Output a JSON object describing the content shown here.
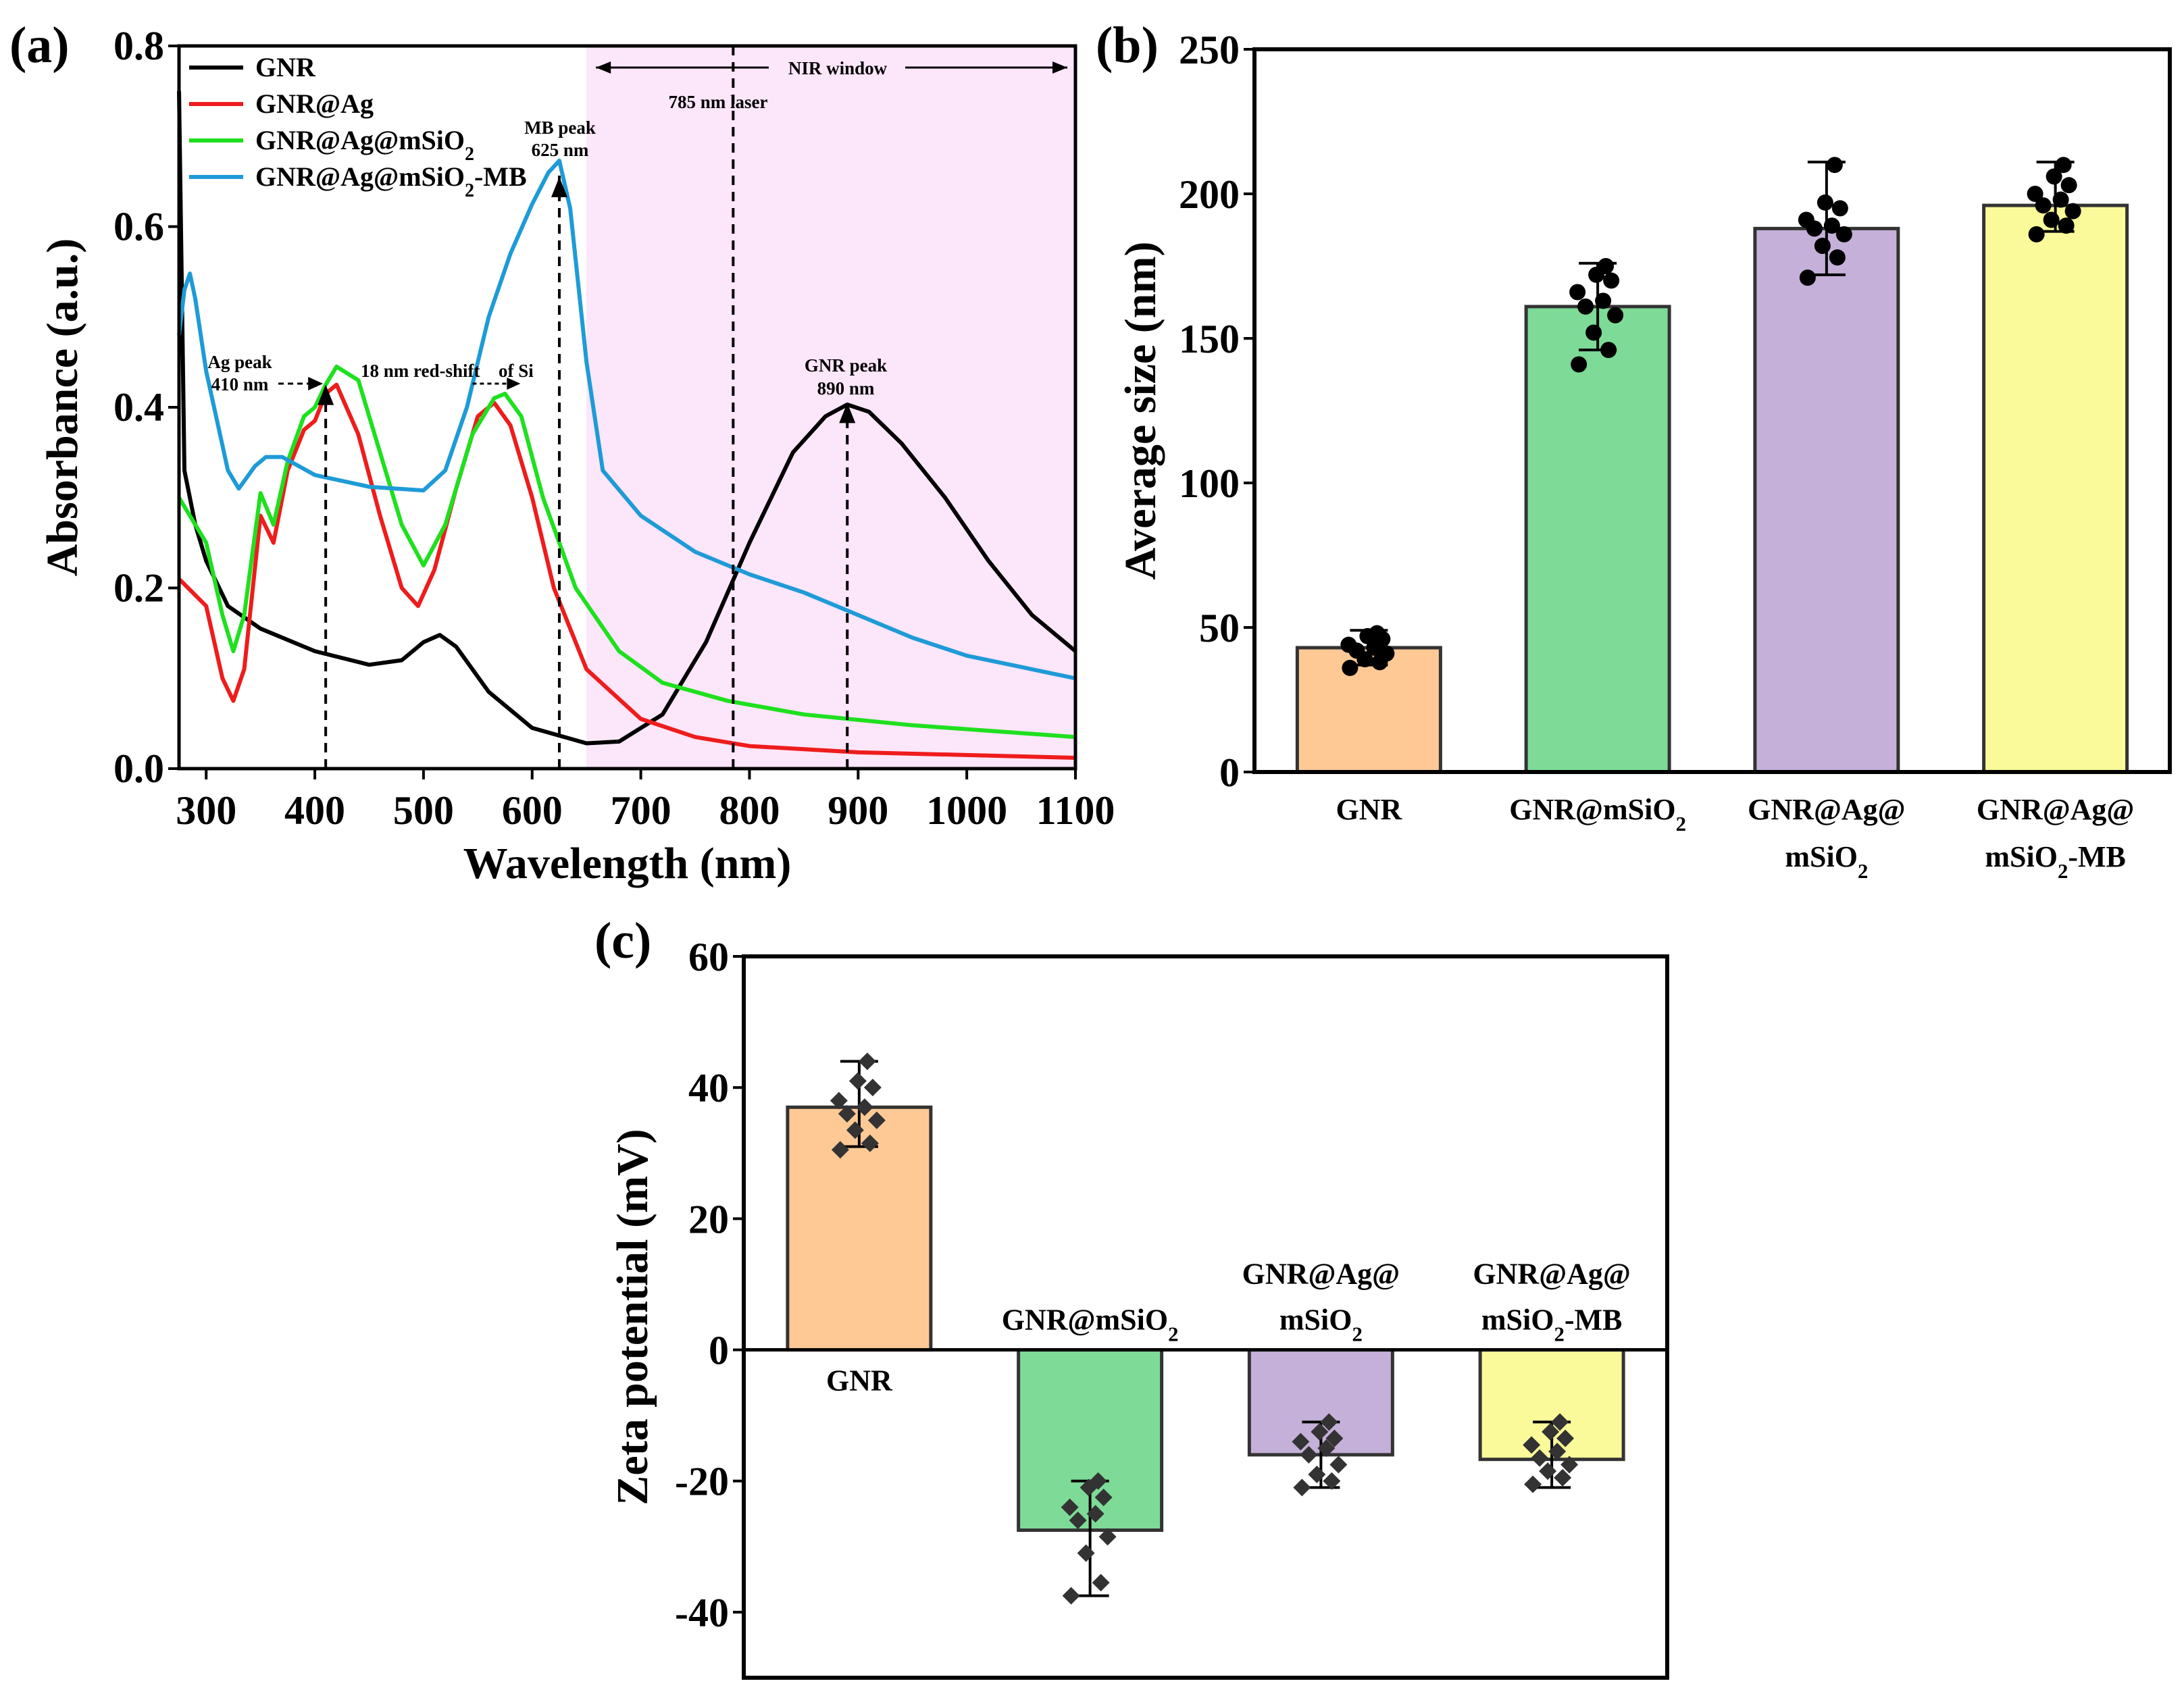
{
  "chart_data": [
    {
      "panel": "(a)",
      "type": "line",
      "xlabel": "Wavelength (nm)",
      "ylabel": "Absorbance (a.u.)",
      "xlim": [
        275,
        1100
      ],
      "ylim": [
        0,
        0.8
      ],
      "xticks": [
        300,
        400,
        500,
        600,
        700,
        800,
        900,
        1000,
        1100
      ],
      "yticks": [
        0.0,
        0.2,
        0.4,
        0.6,
        0.8
      ],
      "legend_position": "top-left",
      "series": [
        {
          "name": "GNR",
          "color": "#000000",
          "x": [
            275,
            280,
            290,
            300,
            320,
            350,
            400,
            450,
            480,
            500,
            515,
            530,
            560,
            600,
            650,
            680,
            720,
            760,
            800,
            840,
            870,
            890,
            910,
            940,
            980,
            1020,
            1060,
            1100
          ],
          "y": [
            0.75,
            0.33,
            0.27,
            0.23,
            0.18,
            0.155,
            0.13,
            0.115,
            0.12,
            0.14,
            0.148,
            0.135,
            0.085,
            0.045,
            0.028,
            0.03,
            0.06,
            0.14,
            0.25,
            0.35,
            0.39,
            0.403,
            0.395,
            0.36,
            0.3,
            0.23,
            0.17,
            0.13
          ]
        },
        {
          "name": "GNR@Ag",
          "color": "#ee1c1c",
          "x": [
            275,
            300,
            315,
            325,
            335,
            350,
            362,
            375,
            390,
            400,
            410,
            420,
            440,
            460,
            480,
            495,
            510,
            530,
            550,
            565,
            580,
            600,
            620,
            650,
            700,
            750,
            800,
            900,
            1000,
            1100
          ],
          "y": [
            0.21,
            0.18,
            0.1,
            0.075,
            0.11,
            0.28,
            0.25,
            0.33,
            0.375,
            0.385,
            0.415,
            0.425,
            0.37,
            0.28,
            0.2,
            0.18,
            0.22,
            0.31,
            0.39,
            0.405,
            0.38,
            0.3,
            0.2,
            0.11,
            0.055,
            0.035,
            0.025,
            0.018,
            0.015,
            0.012
          ]
        },
        {
          "name": "GNR@Ag@mSiO2",
          "color": "#1ee01e",
          "x": [
            275,
            300,
            315,
            325,
            335,
            350,
            362,
            375,
            390,
            400,
            410,
            420,
            440,
            460,
            480,
            500,
            520,
            545,
            565,
            575,
            590,
            610,
            640,
            680,
            720,
            780,
            850,
            950,
            1100
          ],
          "y": [
            0.3,
            0.25,
            0.17,
            0.13,
            0.17,
            0.305,
            0.27,
            0.34,
            0.39,
            0.4,
            0.425,
            0.445,
            0.43,
            0.35,
            0.27,
            0.225,
            0.27,
            0.37,
            0.41,
            0.415,
            0.39,
            0.3,
            0.2,
            0.13,
            0.095,
            0.075,
            0.06,
            0.048,
            0.035
          ]
        },
        {
          "name": "GNR@Ag@mSiO2-MB",
          "color": "#1e9bd7",
          "x": [
            275,
            280,
            285,
            290,
            300,
            320,
            330,
            345,
            355,
            370,
            400,
            450,
            500,
            520,
            540,
            560,
            580,
            600,
            615,
            625,
            635,
            650,
            665,
            700,
            750,
            800,
            850,
            900,
            950,
            1000,
            1100
          ],
          "y": [
            0.48,
            0.53,
            0.548,
            0.52,
            0.44,
            0.33,
            0.31,
            0.335,
            0.345,
            0.345,
            0.325,
            0.312,
            0.308,
            0.33,
            0.4,
            0.5,
            0.57,
            0.625,
            0.66,
            0.673,
            0.62,
            0.45,
            0.33,
            0.28,
            0.24,
            0.215,
            0.195,
            0.17,
            0.145,
            0.125,
            0.1
          ]
        }
      ],
      "annotations": [
        {
          "label": "Ag peak",
          "value": "410 nm",
          "x": 410
        },
        {
          "label": "18 nm red-shift",
          "suffix": "of Si",
          "x_from": 560,
          "x_to": 578
        },
        {
          "label": "MB peak",
          "value": "625 nm",
          "x": 625
        },
        {
          "label": "785 nm laser",
          "x": 785
        },
        {
          "label": "NIR window",
          "x_from": 650,
          "x_to": 1100,
          "shade": "#fce6fa"
        },
        {
          "label": "GNR peak",
          "value": "890 nm",
          "x": 890
        }
      ]
    },
    {
      "panel": "(b)",
      "type": "bar",
      "ylabel": "Average size (nm)",
      "ylim": [
        0,
        250
      ],
      "yticks": [
        0,
        50,
        100,
        150,
        200,
        250
      ],
      "categories": [
        [
          "GNR"
        ],
        [
          "GNR@mSiO",
          "2",
          ""
        ],
        [
          "GNR@Ag@",
          "mSiO",
          "2",
          ""
        ],
        [
          "GNR@Ag@",
          "mSiO",
          "2",
          "-MB"
        ]
      ],
      "category_names": [
        "GNR",
        "GNR@mSiO2",
        "GNR@Ag@mSiO2",
        "GNR@Ag@mSiO2-MB"
      ],
      "values": [
        43,
        161,
        188,
        196
      ],
      "error": [
        [
          37,
          49
        ],
        [
          146,
          176
        ],
        [
          172,
          211
        ],
        [
          187,
          211
        ]
      ],
      "colors": [
        "#ffc995",
        "#7ddb97",
        "#c4b0d8",
        "#fafa9a"
      ],
      "points": [
        [
          36,
          38,
          39,
          41,
          42,
          43,
          44,
          46,
          47,
          48
        ],
        [
          141,
          146,
          152,
          158,
          161,
          163,
          166,
          170,
          172,
          175
        ],
        [
          171,
          178,
          182,
          186,
          188,
          189,
          191,
          195,
          197,
          210
        ],
        [
          186,
          189,
          191,
          194,
          196,
          198,
          200,
          203,
          206,
          210
        ]
      ]
    },
    {
      "panel": "(c)",
      "type": "bar",
      "ylabel": "Zeta potential (mV)",
      "ylim": [
        -50,
        60
      ],
      "yticks": [
        -40,
        -20,
        0,
        20,
        40,
        60
      ],
      "categories": [
        [
          "GNR"
        ],
        [
          "GNR@mSiO",
          "2",
          ""
        ],
        [
          "GNR@Ag@",
          "mSiO",
          "2",
          ""
        ],
        [
          "GNR@Ag@",
          "mSiO",
          "2",
          "-MB"
        ]
      ],
      "category_names": [
        "GNR",
        "GNR@mSiO2",
        "GNR@Ag@mSiO2",
        "GNR@Ag@mSiO2-MB"
      ],
      "values": [
        37,
        -27.5,
        -16,
        -16.7
      ],
      "error": [
        [
          31,
          44
        ],
        [
          -37.5,
          -20
        ],
        [
          -21,
          -11
        ],
        [
          -21,
          -11
        ]
      ],
      "colors": [
        "#ffc995",
        "#7ddb97",
        "#c4b0d8",
        "#fafa9a"
      ],
      "points": [
        [
          30.5,
          31.5,
          33.5,
          35,
          36,
          37,
          38,
          40,
          41,
          44
        ],
        [
          -37.5,
          -35.5,
          -31,
          -28.5,
          -26,
          -25,
          -24,
          -22.5,
          -21,
          -20
        ],
        [
          -21,
          -20,
          -19,
          -17.5,
          -16,
          -15,
          -14,
          -13.5,
          -12.5,
          -11
        ],
        [
          -20.5,
          -19.5,
          -18.5,
          -17.5,
          -16.5,
          -15.5,
          -14.5,
          -13.5,
          -12.5,
          -11
        ]
      ]
    }
  ]
}
